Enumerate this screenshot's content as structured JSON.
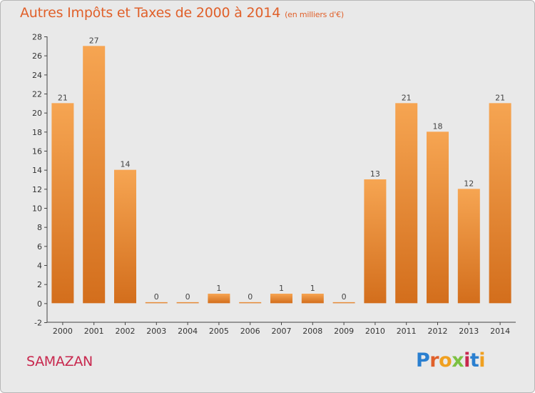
{
  "header": {
    "title": "Autres Impôts et Taxes de 2000 à 2014",
    "unit": "(en milliers d'€)"
  },
  "footer": {
    "commune": "SAMAZAN",
    "logo": "Proxiti"
  },
  "colors": {
    "accent": "#e0602a",
    "commune": "#c8284e",
    "bar_light": "#f6a552",
    "bar_dark": "#d36e1c",
    "background": "#e9e9e9"
  },
  "chart_data": {
    "type": "bar",
    "title": "Autres Impôts et Taxes de 2000 à 2014",
    "subtitle": "(en milliers d'€)",
    "categories": [
      "2000",
      "2001",
      "2002",
      "2003",
      "2004",
      "2005",
      "2006",
      "2007",
      "2008",
      "2009",
      "2010",
      "2011",
      "2012",
      "2013",
      "2014"
    ],
    "values": [
      21,
      27,
      14,
      0,
      0,
      1,
      0,
      1,
      1,
      0,
      13,
      21,
      18,
      12,
      21
    ],
    "data_labels": [
      "21",
      "27",
      "14",
      "0",
      "0",
      "1",
      "0",
      "1",
      "1",
      "0",
      "13",
      "21",
      "18",
      "12",
      "21"
    ],
    "ylim": [
      -2,
      28
    ],
    "yticks": [
      -2,
      0,
      2,
      4,
      6,
      8,
      10,
      12,
      14,
      16,
      18,
      20,
      22,
      24,
      26,
      28
    ],
    "grid": false,
    "legend": "none"
  }
}
